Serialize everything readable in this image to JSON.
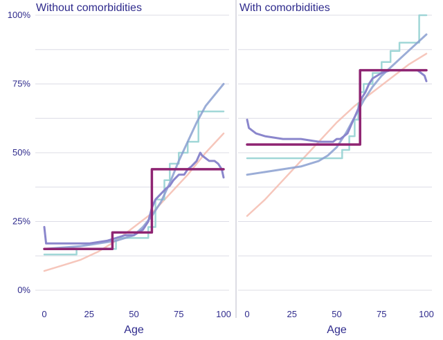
{
  "chart_data": {
    "type": "line",
    "xlabel": "Age",
    "ylabel": "",
    "xlim": [
      0,
      100
    ],
    "ylim": [
      0,
      1
    ],
    "x_ticks": [
      0,
      25,
      50,
      75,
      100
    ],
    "y_ticks": [
      0,
      0.25,
      0.5,
      0.75,
      1.0
    ],
    "x_tick_labels": [
      "0",
      "25",
      "50",
      "75",
      "100"
    ],
    "y_tick_labels": [
      "0%",
      "25%",
      "50%",
      "75%",
      "100%"
    ],
    "grid": "horizontal",
    "legend": "none",
    "series_styles": [
      {
        "color": "#f4b8aa",
        "width": 2.5,
        "opacity": 0.8
      },
      {
        "color": "#8fd0d0",
        "width": 2.5,
        "opacity": 0.85
      },
      {
        "color": "#8a9fd0",
        "width": 3.0,
        "opacity": 0.85
      },
      {
        "color": "#8a86cc",
        "width": 3.0,
        "opacity": 1.0
      },
      {
        "color": "#8e2472",
        "width": 3.5,
        "opacity": 1.0
      }
    ],
    "panels": [
      {
        "title": "Without comorbidities",
        "series": [
          {
            "style": 0,
            "step": false,
            "x": [
              0,
              10,
              20,
              30,
              40,
              50,
              60,
              70,
              80,
              90,
              100
            ],
            "y": [
              0.07,
              0.09,
              0.11,
              0.14,
              0.18,
              0.23,
              0.28,
              0.35,
              0.42,
              0.5,
              0.57
            ]
          },
          {
            "style": 1,
            "step": true,
            "x": [
              0,
              18,
              40,
              58,
              62,
              67,
              70,
              75,
              80,
              86,
              90,
              100
            ],
            "y": [
              0.13,
              0.15,
              0.19,
              0.23,
              0.33,
              0.4,
              0.46,
              0.5,
              0.54,
              0.65,
              0.65,
              0.65
            ]
          },
          {
            "style": 2,
            "step": false,
            "x": [
              0,
              20,
              40,
              50,
              55,
              60,
              65,
              70,
              75,
              80,
              85,
              90,
              95,
              100
            ],
            "y": [
              0.15,
              0.16,
              0.18,
              0.2,
              0.23,
              0.27,
              0.32,
              0.39,
              0.47,
              0.54,
              0.61,
              0.67,
              0.71,
              0.75
            ]
          },
          {
            "style": 3,
            "step": false,
            "x": [
              0,
              1,
              3,
              8,
              15,
              25,
              35,
              40,
              45,
              50,
              55,
              58,
              60,
              62,
              65,
              68,
              70,
              72,
              75,
              78,
              80,
              82,
              85,
              87,
              88,
              90,
              92,
              95,
              97,
              99,
              100
            ],
            "y": [
              0.23,
              0.17,
              0.17,
              0.17,
              0.17,
              0.17,
              0.18,
              0.19,
              0.2,
              0.2,
              0.22,
              0.25,
              0.3,
              0.33,
              0.35,
              0.37,
              0.38,
              0.4,
              0.42,
              0.42,
              0.44,
              0.45,
              0.47,
              0.5,
              0.49,
              0.48,
              0.47,
              0.47,
              0.46,
              0.44,
              0.41
            ]
          },
          {
            "style": 4,
            "step": true,
            "x": [
              0,
              38,
              60,
              100
            ],
            "y": [
              0.15,
              0.21,
              0.44,
              0.44
            ]
          }
        ]
      },
      {
        "title": "With comorbidities",
        "series": [
          {
            "style": 0,
            "step": false,
            "x": [
              0,
              10,
              20,
              30,
              40,
              50,
              60,
              70,
              80,
              90,
              100
            ],
            "y": [
              0.27,
              0.33,
              0.4,
              0.47,
              0.54,
              0.61,
              0.67,
              0.72,
              0.77,
              0.82,
              0.86
            ]
          },
          {
            "style": 1,
            "step": true,
            "x": [
              0,
              53,
              57,
              60,
              62,
              63,
              65,
              70,
              75,
              80,
              85,
              96,
              100
            ],
            "y": [
              0.48,
              0.51,
              0.56,
              0.62,
              0.68,
              0.72,
              0.75,
              0.79,
              0.83,
              0.87,
              0.9,
              1.0,
              1.0
            ]
          },
          {
            "style": 2,
            "step": false,
            "x": [
              0,
              10,
              20,
              30,
              40,
              45,
              50,
              55,
              60,
              65,
              70,
              75,
              80,
              85,
              90,
              95,
              100
            ],
            "y": [
              0.42,
              0.43,
              0.44,
              0.45,
              0.47,
              0.49,
              0.52,
              0.57,
              0.63,
              0.69,
              0.74,
              0.78,
              0.81,
              0.84,
              0.87,
              0.9,
              0.93
            ]
          },
          {
            "style": 3,
            "step": false,
            "x": [
              0,
              1,
              3,
              5,
              10,
              20,
              30,
              40,
              45,
              48,
              50,
              52,
              54,
              56,
              58,
              60,
              62,
              64,
              66,
              68,
              70,
              75,
              80,
              85,
              90,
              95,
              97,
              99,
              100
            ],
            "y": [
              0.62,
              0.59,
              0.58,
              0.57,
              0.56,
              0.55,
              0.55,
              0.54,
              0.54,
              0.54,
              0.55,
              0.55,
              0.56,
              0.57,
              0.6,
              0.63,
              0.66,
              0.7,
              0.72,
              0.75,
              0.77,
              0.79,
              0.8,
              0.8,
              0.8,
              0.8,
              0.79,
              0.78,
              0.76
            ]
          },
          {
            "style": 4,
            "step": true,
            "x": [
              0,
              63,
              100
            ],
            "y": [
              0.53,
              0.8,
              0.8
            ]
          }
        ]
      }
    ]
  }
}
